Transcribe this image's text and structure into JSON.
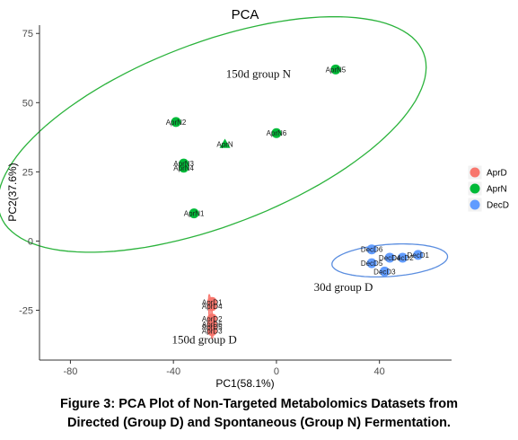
{
  "chart_data": {
    "type": "scatter",
    "title": "PCA",
    "xlabel": "PC1(58.1%)",
    "ylabel": "PC2(37.6%)",
    "xlim": [
      -92,
      68
    ],
    "ylim": [
      -43,
      78
    ],
    "xticks": [
      -80,
      -40,
      0,
      40
    ],
    "yticks": [
      75,
      50,
      25,
      0,
      -25
    ],
    "grid": false,
    "legend_position": "right",
    "series": [
      {
        "name": "AprD",
        "color": "#F8766D",
        "points": [
          {
            "label": "AprD1",
            "x": -25,
            "y": -22
          },
          {
            "label": "AprD4",
            "x": -25,
            "y": -23.5
          },
          {
            "label": "AprD2",
            "x": -25,
            "y": -28
          },
          {
            "label": "AprD6",
            "x": -25,
            "y": -30
          },
          {
            "label": "AprD5",
            "x": -25,
            "y": -31
          },
          {
            "label": "AprD3",
            "x": -25,
            "y": -32.5
          }
        ]
      },
      {
        "name": "AprN",
        "color": "#00BA38",
        "points": [
          {
            "label": "AprN5",
            "x": 23,
            "y": 62
          },
          {
            "label": "AprN2",
            "x": -39,
            "y": 43
          },
          {
            "label": "AprN",
            "x": -20,
            "y": 35
          },
          {
            "label": "AprN6",
            "x": 0,
            "y": 39
          },
          {
            "label": "AprN3",
            "x": -36,
            "y": 28
          },
          {
            "label": "AprN4",
            "x": -36,
            "y": 26.5
          },
          {
            "label": "AprN1",
            "x": -32,
            "y": 10
          }
        ]
      },
      {
        "name": "DecD",
        "color": "#619CFF",
        "points": [
          {
            "label": "DecD6",
            "x": 37,
            "y": -3
          },
          {
            "label": "DecD1",
            "x": 55,
            "y": -5
          },
          {
            "label": "DecD4",
            "x": 44,
            "y": -6
          },
          {
            "label": "DecD2",
            "x": 49,
            "y": -6
          },
          {
            "label": "DecD5",
            "x": 37,
            "y": -8
          },
          {
            "label": "DecD3",
            "x": 42,
            "y": -11
          }
        ]
      }
    ],
    "ellipses": [
      {
        "group": "AprN",
        "cx": -25,
        "cy": 38.5,
        "rx": 88,
        "ry": 33,
        "angle_deg": 21
      },
      {
        "group": "DecD",
        "cx": 44,
        "cy": -7,
        "rx": 22.5,
        "ry": 5.8,
        "angle_deg": 4
      },
      {
        "group": "AprD",
        "cx": -25.5,
        "cy": -27.3,
        "rx": 8.6,
        "ry": 0.65,
        "angle_deg": -86
      }
    ],
    "annotations": [
      {
        "text": "150d group N",
        "x": -7,
        "y": 59
      },
      {
        "text": "30d group D",
        "x": 26,
        "y": -18
      },
      {
        "text": "150d group D",
        "x": -28,
        "y": -37
      }
    ]
  },
  "caption": {
    "line1": "Figure 3: PCA Plot of Non-Targeted Metabolomics Datasets from",
    "line2": "Directed (Group D) and Spontaneous (Group N) Fermentation."
  }
}
